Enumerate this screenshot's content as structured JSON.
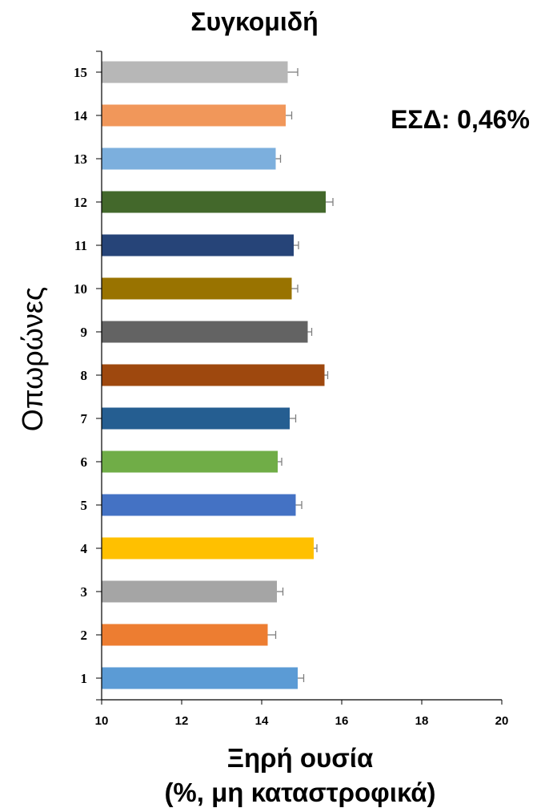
{
  "chart_data": {
    "type": "bar",
    "orientation": "horizontal",
    "title": "Συγκομιδή",
    "ylabel": "Οπωρώνες",
    "xlabel_line1": "Ξηρή ουσία",
    "xlabel_line2": "(%, μη καταστροφικά)",
    "annotation": "ΕΣΔ: 0,46%",
    "xlim": [
      10,
      20
    ],
    "x_ticks": [
      10,
      12,
      14,
      16,
      18,
      20
    ],
    "x_tick_labels": [
      "10",
      "12",
      "14",
      "16",
      "18",
      "20"
    ],
    "categories": [
      "1",
      "2",
      "3",
      "4",
      "5",
      "6",
      "7",
      "8",
      "9",
      "10",
      "11",
      "12",
      "13",
      "14",
      "15"
    ],
    "values": [
      14.9,
      14.15,
      14.38,
      15.3,
      14.85,
      14.4,
      14.7,
      15.57,
      15.15,
      14.75,
      14.8,
      15.6,
      14.35,
      14.6,
      14.65
    ],
    "errors": [
      0.15,
      0.2,
      0.15,
      0.08,
      0.15,
      0.1,
      0.15,
      0.08,
      0.1,
      0.15,
      0.12,
      0.18,
      0.12,
      0.15,
      0.25
    ],
    "colors": [
      "#5B9BD5",
      "#ED7D31",
      "#A5A5A5",
      "#FFC000",
      "#4472C4",
      "#70AD47",
      "#255E91",
      "#9E480E",
      "#636363",
      "#997300",
      "#264478",
      "#43682B",
      "#7CAFDD",
      "#F1975A",
      "#B7B7B7"
    ],
    "error_bar_color": "#7f7f7f",
    "grid": false,
    "legend": "none"
  }
}
